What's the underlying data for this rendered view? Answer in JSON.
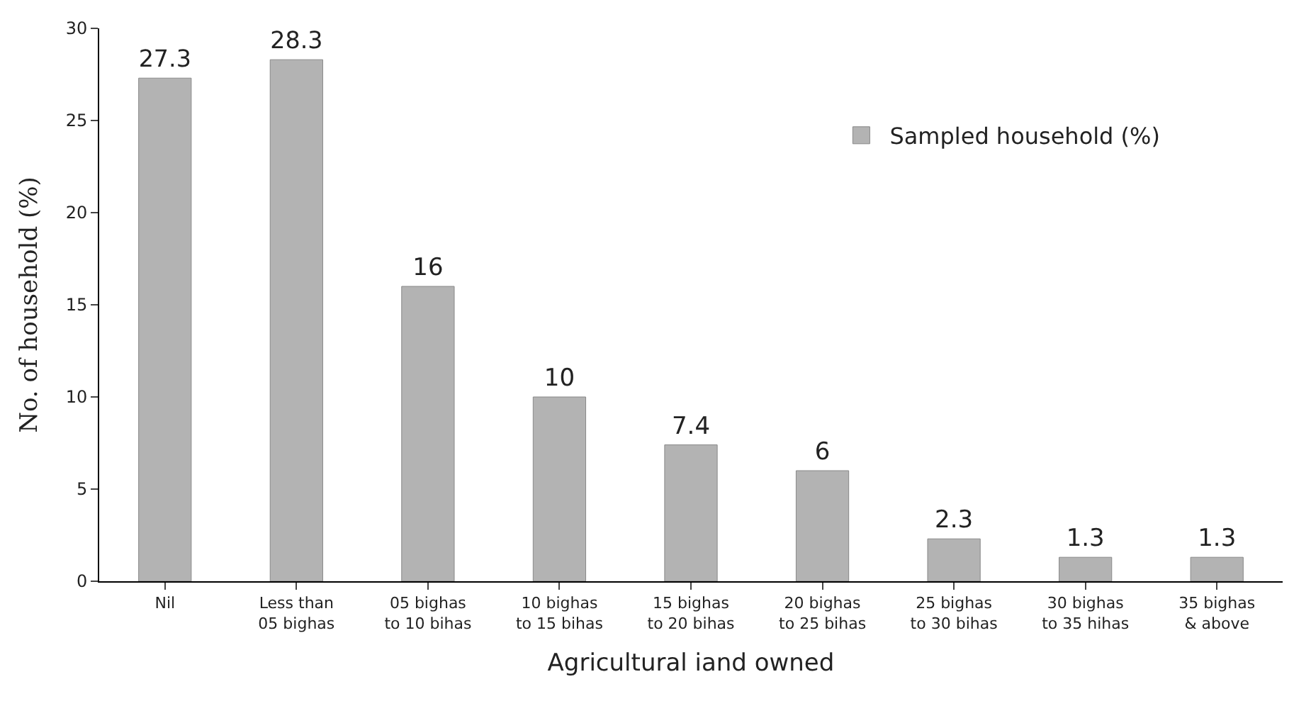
{
  "chart_data": {
    "type": "bar",
    "xlabel": "Agricultural iand owned",
    "ylabel": "No. of household (%)",
    "categories": [
      "Nil",
      "Less than\n05 bighas",
      "05 bighas\nto 10 bihas",
      "10 bighas\nto 15 bihas",
      "15 bighas\nto 20 bihas",
      "20 bighas\nto 25 bihas",
      "25 bighas\nto 30 bihas",
      "30 bighas\nto 35 hihas",
      "35 bighas\n& above"
    ],
    "series": [
      {
        "name": "Sampled household (%)",
        "color": "#b3b3b3",
        "values": [
          27.3,
          28.3,
          16,
          10,
          7.4,
          6,
          2.3,
          1.3,
          1.3
        ]
      }
    ],
    "ylim": [
      0,
      30
    ],
    "yticks": [
      0,
      5,
      10,
      15,
      20,
      25,
      30
    ],
    "legend": "top right",
    "data_labels": true
  }
}
